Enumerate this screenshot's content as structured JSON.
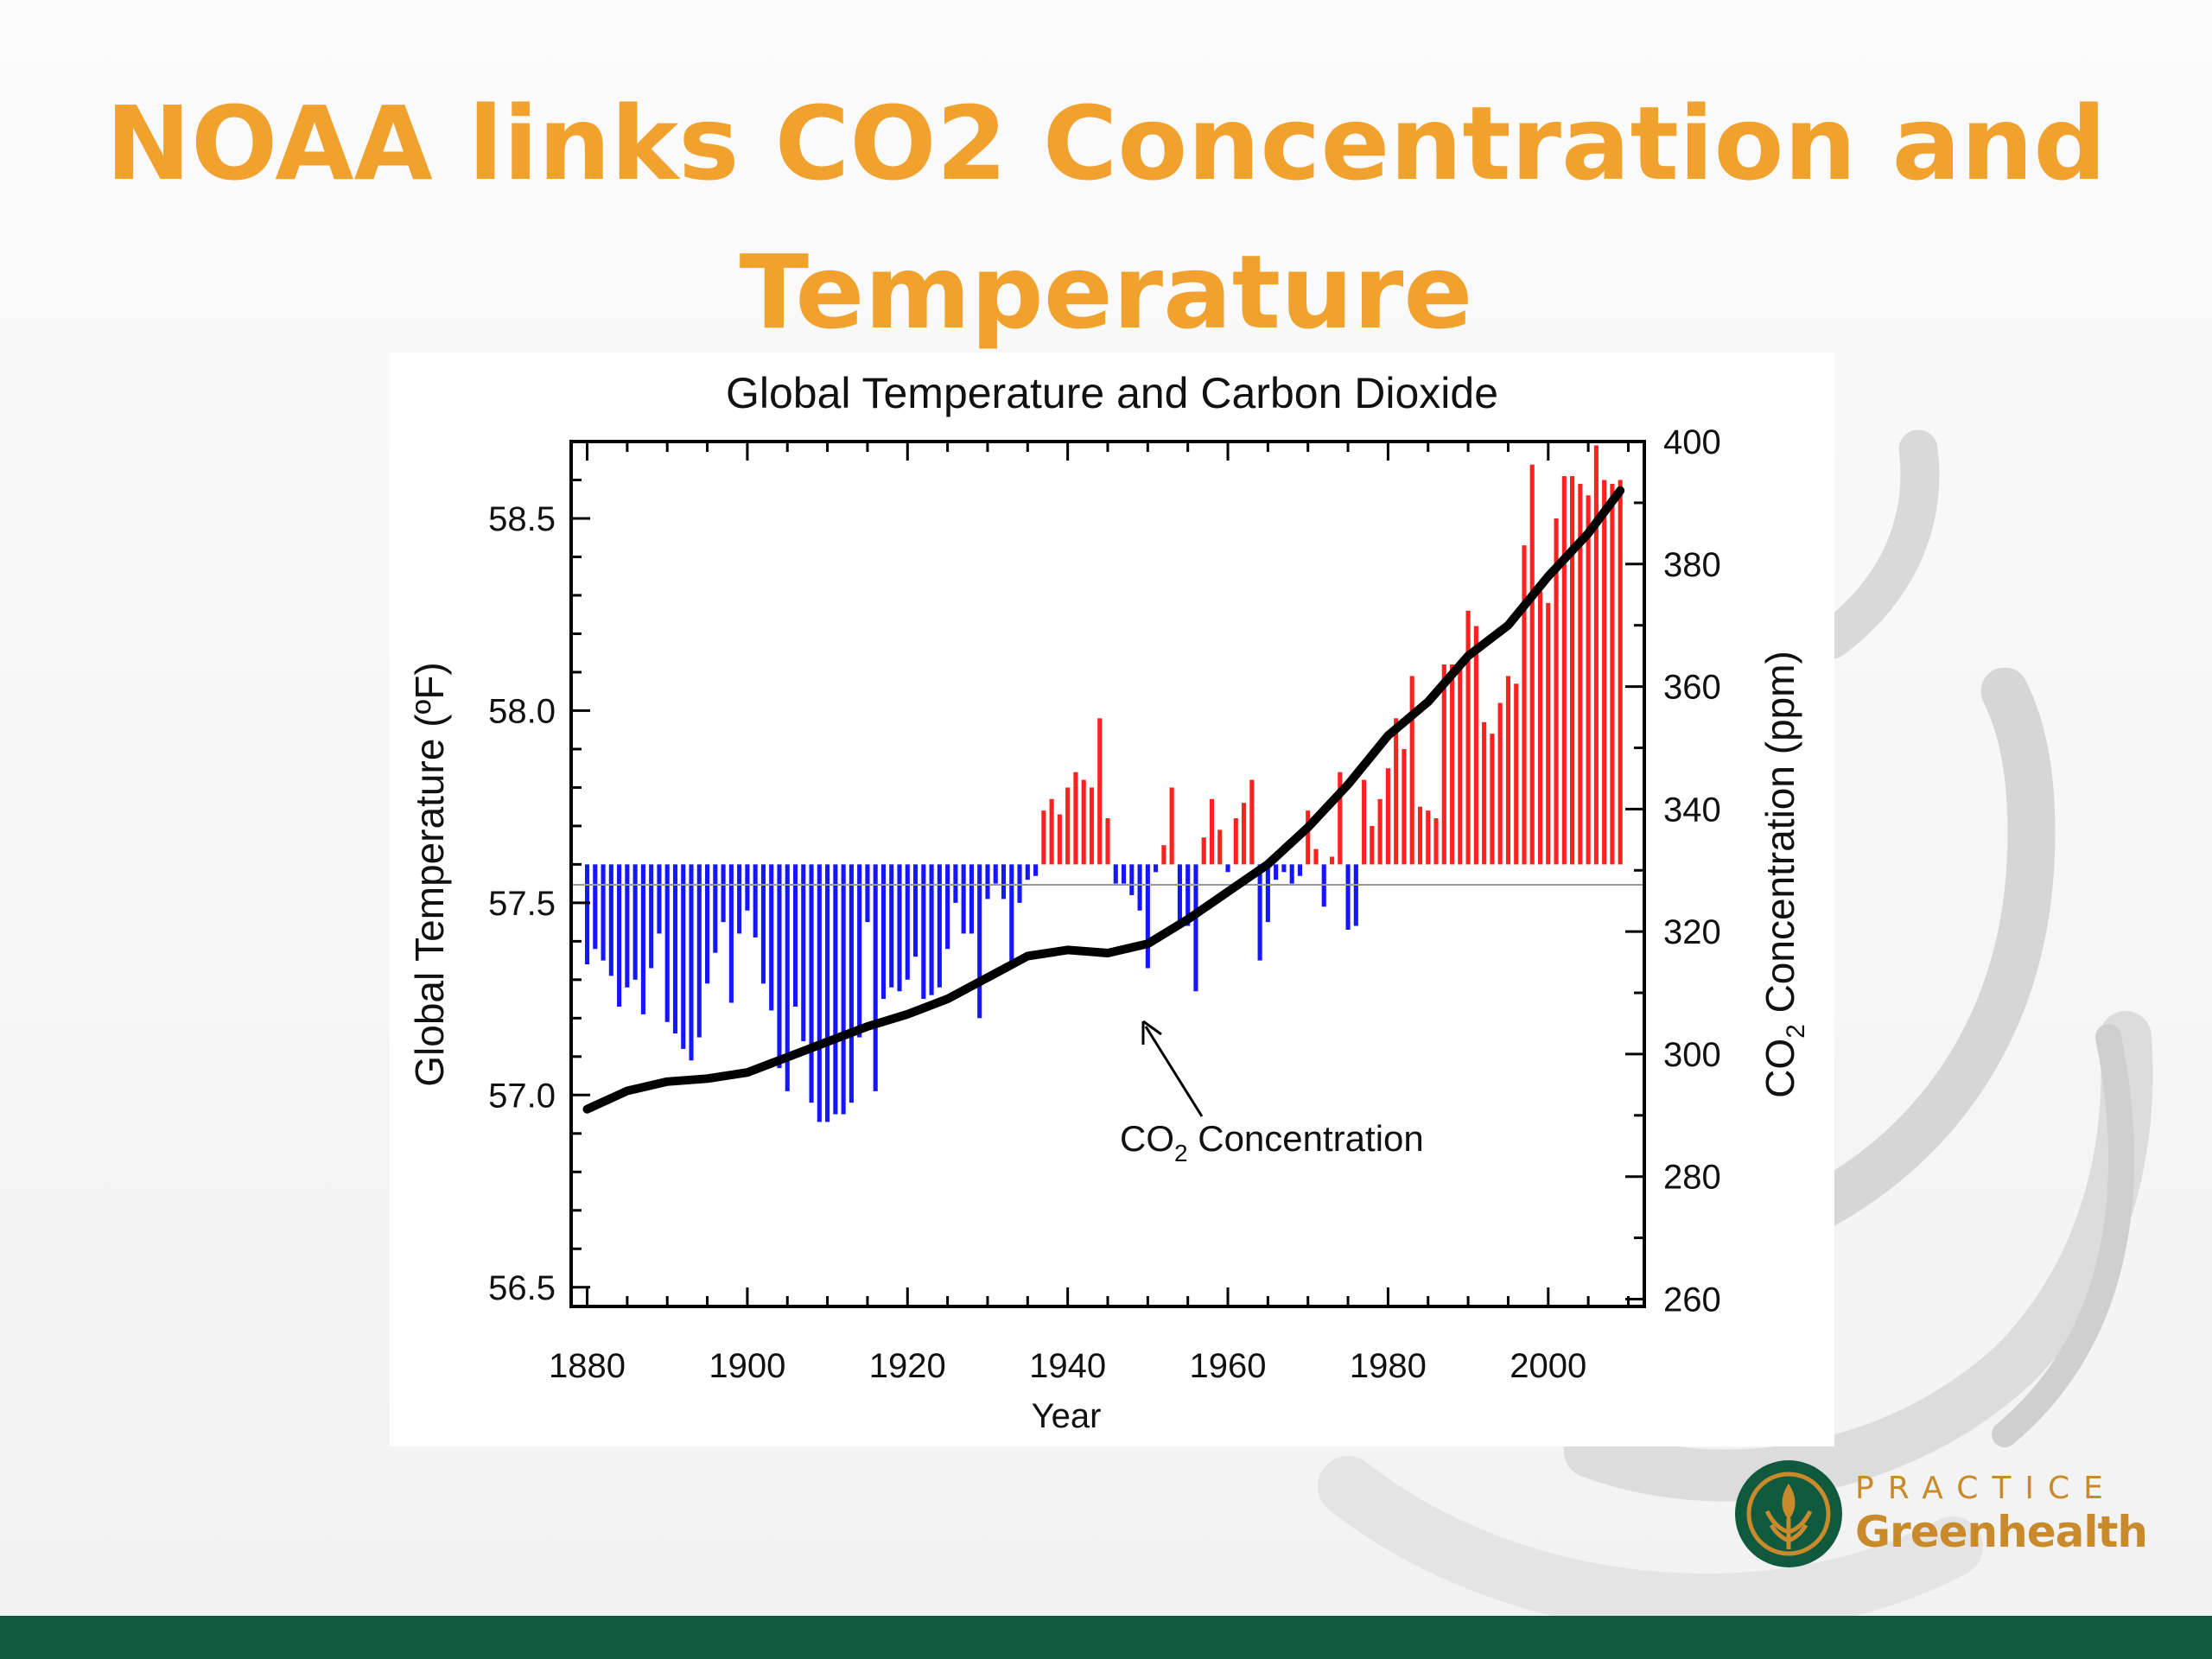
{
  "slide": {
    "title": "NOAA links CO2 Concentration and Temperature"
  },
  "logo": {
    "line1": "PRACTICE",
    "line2": "Greenhealth"
  },
  "colors": {
    "title": "#f0a12e",
    "positive_bar": "#ff2020",
    "negative_bar": "#1515ff",
    "co2_line": "#000000",
    "footer": "#0f5a3e",
    "logo_green": "#0f5a3e",
    "logo_gold": "#c98a2b"
  },
  "chart_data": {
    "type": "bar",
    "title": "Global Temperature and Carbon Dioxide",
    "xlabel": "Year",
    "ylabel": "Global Temperature (ºF)",
    "y2label": "CO2 Concentration (ppm)",
    "annotation": "CO2 Concentration",
    "xlim": [
      1878,
      2012
    ],
    "ylim": [
      56.45,
      58.7
    ],
    "y2lim": [
      258.8,
      400
    ],
    "baseline": 57.6,
    "x_ticks": [
      "1880",
      "1900",
      "1920",
      "1940",
      "1960",
      "1980",
      "2000"
    ],
    "y_ticks": [
      "56.5",
      "57.0",
      "57.5",
      "58.0",
      "58.5"
    ],
    "y2_ticks": [
      "260",
      "280",
      "300",
      "320",
      "340",
      "360",
      "380",
      "400"
    ],
    "legend": "none",
    "grid": false,
    "series": [
      {
        "kind": "bar",
        "x": [
          1880,
          1881,
          1882,
          1883,
          1884,
          1885,
          1886,
          1887,
          1888,
          1889,
          1890,
          1891,
          1892,
          1893,
          1894,
          1895,
          1896,
          1897,
          1898,
          1899,
          1900,
          1901,
          1902,
          1903,
          1904,
          1905,
          1906,
          1907,
          1908,
          1909,
          1910,
          1911,
          1912,
          1913,
          1914,
          1915,
          1916,
          1917,
          1918,
          1919,
          1920,
          1921,
          1922,
          1923,
          1924,
          1925,
          1926,
          1927,
          1928,
          1929,
          1930,
          1931,
          1932,
          1933,
          1934,
          1935,
          1936,
          1937,
          1938,
          1939,
          1940,
          1941,
          1942,
          1943,
          1944,
          1945,
          1946,
          1947,
          1948,
          1949,
          1950,
          1951,
          1952,
          1953,
          1954,
          1955,
          1956,
          1957,
          1958,
          1959,
          1960,
          1961,
          1962,
          1963,
          1964,
          1965,
          1966,
          1967,
          1968,
          1969,
          1970,
          1971,
          1972,
          1973,
          1974,
          1975,
          1976,
          1977,
          1978,
          1979,
          1980,
          1981,
          1982,
          1983,
          1984,
          1985,
          1986,
          1987,
          1988,
          1989,
          1990,
          1991,
          1992,
          1993,
          1994,
          1995,
          1996,
          1997,
          1998,
          1999,
          2000,
          2001,
          2002,
          2003,
          2004,
          2005,
          2006,
          2007,
          2008,
          2009
        ],
        "values": [
          57.34,
          57.38,
          57.35,
          57.31,
          57.23,
          57.28,
          57.3,
          57.21,
          57.33,
          57.42,
          57.19,
          57.16,
          57.12,
          57.09,
          57.15,
          57.29,
          57.37,
          57.45,
          57.24,
          57.42,
          57.48,
          57.41,
          57.29,
          57.22,
          57.07,
          57.01,
          57.23,
          57.14,
          56.98,
          56.93,
          56.93,
          56.95,
          56.95,
          56.98,
          57.15,
          57.45,
          57.01,
          57.25,
          57.28,
          57.27,
          57.3,
          57.36,
          57.25,
          57.26,
          57.28,
          57.38,
          57.5,
          57.42,
          57.42,
          57.2,
          57.51,
          57.55,
          57.51,
          57.33,
          57.5,
          57.56,
          57.57,
          57.74,
          57.77,
          57.73,
          57.8,
          57.84,
          57.82,
          57.8,
          57.98,
          57.72,
          57.55,
          57.55,
          57.52,
          57.48,
          57.33,
          57.58,
          57.65,
          57.8,
          57.44,
          57.44,
          57.27,
          57.67,
          57.77,
          57.69,
          57.58,
          57.72,
          57.76,
          57.82,
          57.35,
          57.45,
          57.56,
          57.58,
          57.55,
          57.57,
          57.74,
          57.64,
          57.49,
          57.62,
          57.84,
          57.43,
          57.44,
          57.82,
          57.7,
          57.77,
          57.85,
          57.98,
          57.9,
          58.09,
          57.75,
          57.74,
          57.72,
          58.12,
          58.12,
          58.12,
          58.26,
          58.22,
          57.97,
          57.94,
          58.02,
          58.09,
          58.07,
          58.43,
          58.64,
          58.31,
          58.28,
          58.5,
          58.61,
          58.61,
          58.59,
          58.56,
          58.69,
          58.6,
          58.59,
          58.6
        ]
      },
      {
        "kind": "line",
        "name": "CO2 Concentration",
        "x": [
          1880,
          1885,
          1890,
          1895,
          1900,
          1905,
          1910,
          1915,
          1920,
          1925,
          1930,
          1935,
          1940,
          1945,
          1950,
          1955,
          1960,
          1965,
          1970,
          1975,
          1980,
          1985,
          1990,
          1995,
          2000,
          2005,
          2009
        ],
        "values": [
          291,
          294,
          295.5,
          296,
          297,
          299.5,
          302,
          304.5,
          306.5,
          309,
          312.5,
          316,
          317,
          316.5,
          318,
          322,
          326.5,
          331,
          337,
          344,
          352,
          357.5,
          365,
          370,
          378,
          385,
          392
        ]
      }
    ]
  }
}
